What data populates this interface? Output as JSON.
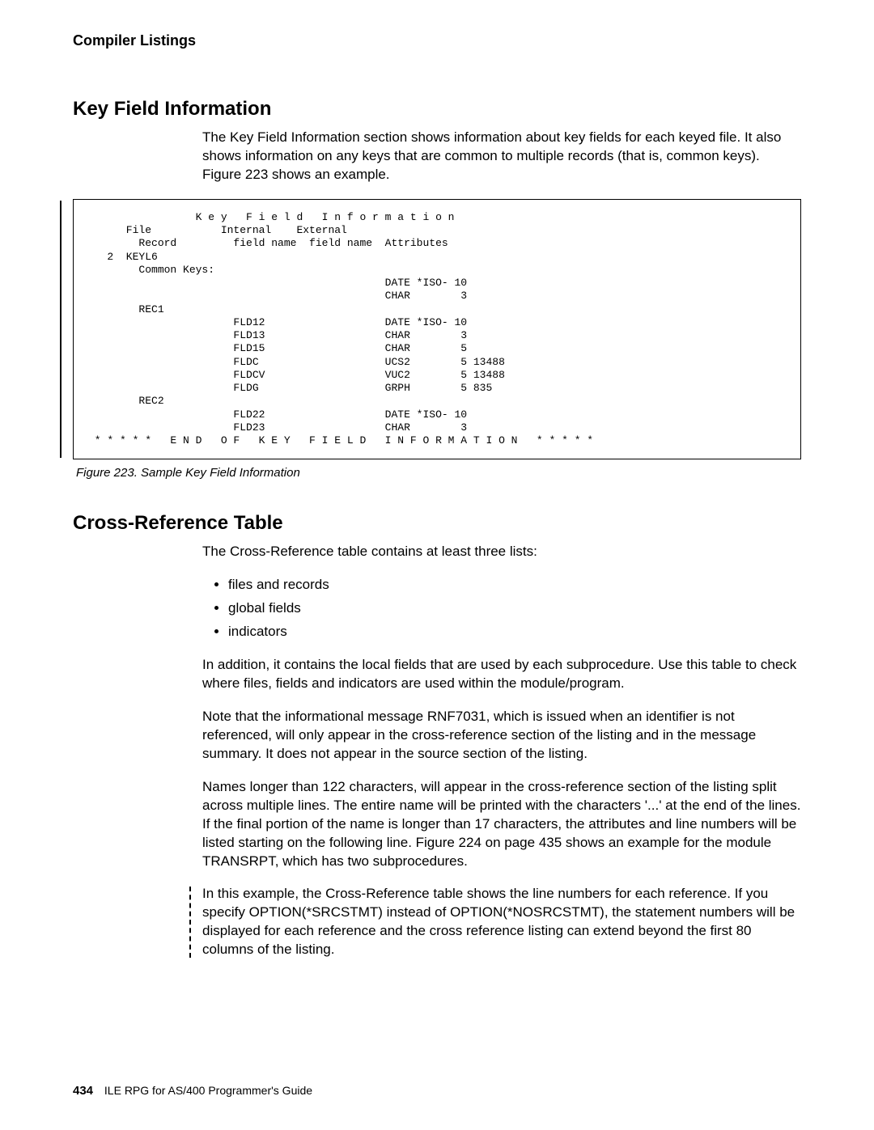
{
  "running_head": "Compiler Listings",
  "section1": {
    "heading": "Key Field Information",
    "intro": "The Key Field Information section shows information about key fields for each keyed file. It also shows information on any keys that are common to multiple records (that is, common keys). Figure 223 shows an example."
  },
  "codebox": "                 K e y   F i e l d   I n f o r m a t i o n\n      File           Internal    External\n        Record         field name  field name  Attributes\n   2  KEYL6\n        Common Keys:\n                                               DATE *ISO- 10\n                                               CHAR        3\n        REC1\n                       FLD12                   DATE *ISO- 10\n                       FLD13                   CHAR        3\n                       FLD15                   CHAR        5\n                       FLDC                    UCS2        5 13488\n                       FLDCV                   VUC2        5 13488\n                       FLDG                    GRPH        5 835\n        REC2\n                       FLD22                   DATE *ISO- 10\n                       FLD23                   CHAR        3\n * * * * *   E N D   O F   K E Y   F I E L D   I N F O R M A T I O N   * * * * *",
  "figure_caption": "Figure 223. Sample Key Field Information",
  "section2": {
    "heading": "Cross-Reference Table",
    "intro": "The Cross-Reference table contains at least three lists:",
    "bullets": [
      "files and records",
      "global fields",
      "indicators"
    ],
    "p2": "In addition, it contains the local fields that are used by each subprocedure. Use this table to check where files, fields and indicators are used within the module/program.",
    "p3": "Note that the informational message RNF7031, which is issued when an identifier is not referenced, will only appear in the cross-reference section of the listing and in the message summary. It does not appear in the source section of the listing.",
    "p4": "Names longer than 122 characters, will appear in the cross-reference section of the listing split across multiple lines. The entire name will be printed with the characters '...' at the end of the lines. If the final portion of the name is longer than 17 characters, the attributes and line numbers will be listed starting on the following line. Figure 224 on page 435 shows an example for the module TRANSRPT, which has two subprocedures.",
    "p5": "In this example, the Cross-Reference table shows the line numbers for each reference. If you specify OPTION(*SRCSTMT) instead of OPTION(*NOSRCSTMT), the statement numbers will be displayed for each reference and the cross reference listing can extend beyond the first 80 columns of the listing."
  },
  "footer": {
    "page_number": "434",
    "book_title": "ILE RPG for AS/400 Programmer's Guide"
  }
}
